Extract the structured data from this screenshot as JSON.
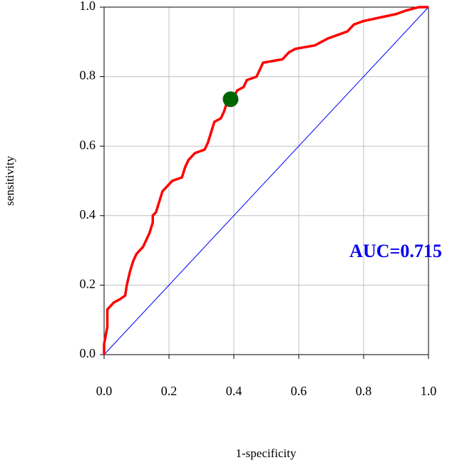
{
  "chart_data": {
    "type": "line",
    "xlabel": "1-specificity",
    "ylabel": "sensitivity",
    "annotation": "AUC=0.715",
    "annotation_color": "#0000ee",
    "xlim": [
      0,
      1
    ],
    "ylim": [
      0,
      1
    ],
    "xticks": [
      {
        "value": 0,
        "label": "0.0"
      },
      0.2,
      0.4,
      0.6,
      0.8,
      {
        "value": 1,
        "label": "1.0"
      }
    ],
    "yticks": [
      {
        "value": 0,
        "label": "0.0"
      },
      0.2,
      0.4,
      0.6,
      0.8,
      {
        "value": 1,
        "label": "1.0"
      }
    ],
    "grid": true,
    "series": [
      {
        "color": "#ff0000",
        "x": [
          0,
          0,
          0.01,
          0.01,
          0.02,
          0.03,
          0.05,
          0.065,
          0.07,
          0.08,
          0.09,
          0.1,
          0.11,
          0.12,
          0.13,
          0.14,
          0.15,
          0.15,
          0.16,
          0.17,
          0.18,
          0.19,
          0.2,
          0.21,
          0.24,
          0.25,
          0.26,
          0.28,
          0.31,
          0.32,
          0.33,
          0.34,
          0.36,
          0.37,
          0.38,
          0.4,
          0.41,
          0.43,
          0.44,
          0.47,
          0.48,
          0.49,
          0.55,
          0.57,
          0.59,
          0.65,
          0.67,
          0.69,
          0.72,
          0.75,
          0.77,
          0.8,
          0.85,
          0.9,
          0.93,
          0.97,
          1
        ],
        "values": [
          0,
          0.03,
          0.08,
          0.13,
          0.14,
          0.15,
          0.16,
          0.17,
          0.2,
          0.24,
          0.27,
          0.29,
          0.3,
          0.31,
          0.33,
          0.35,
          0.38,
          0.4,
          0.41,
          0.44,
          0.47,
          0.48,
          0.49,
          0.5,
          0.51,
          0.54,
          0.56,
          0.58,
          0.59,
          0.61,
          0.64,
          0.67,
          0.68,
          0.7,
          0.73,
          0.74,
          0.76,
          0.77,
          0.79,
          0.8,
          0.82,
          0.84,
          0.85,
          0.87,
          0.88,
          0.89,
          0.9,
          0.91,
          0.92,
          0.93,
          0.95,
          0.96,
          0.97,
          0.98,
          0.99,
          1,
          1
        ]
      },
      {
        "color": "#0000ff",
        "x": [
          0,
          1
        ],
        "values": [
          0,
          1
        ]
      }
    ],
    "points": [
      {
        "color": "#006400",
        "x": 0.39,
        "y": 0.735
      }
    ]
  }
}
